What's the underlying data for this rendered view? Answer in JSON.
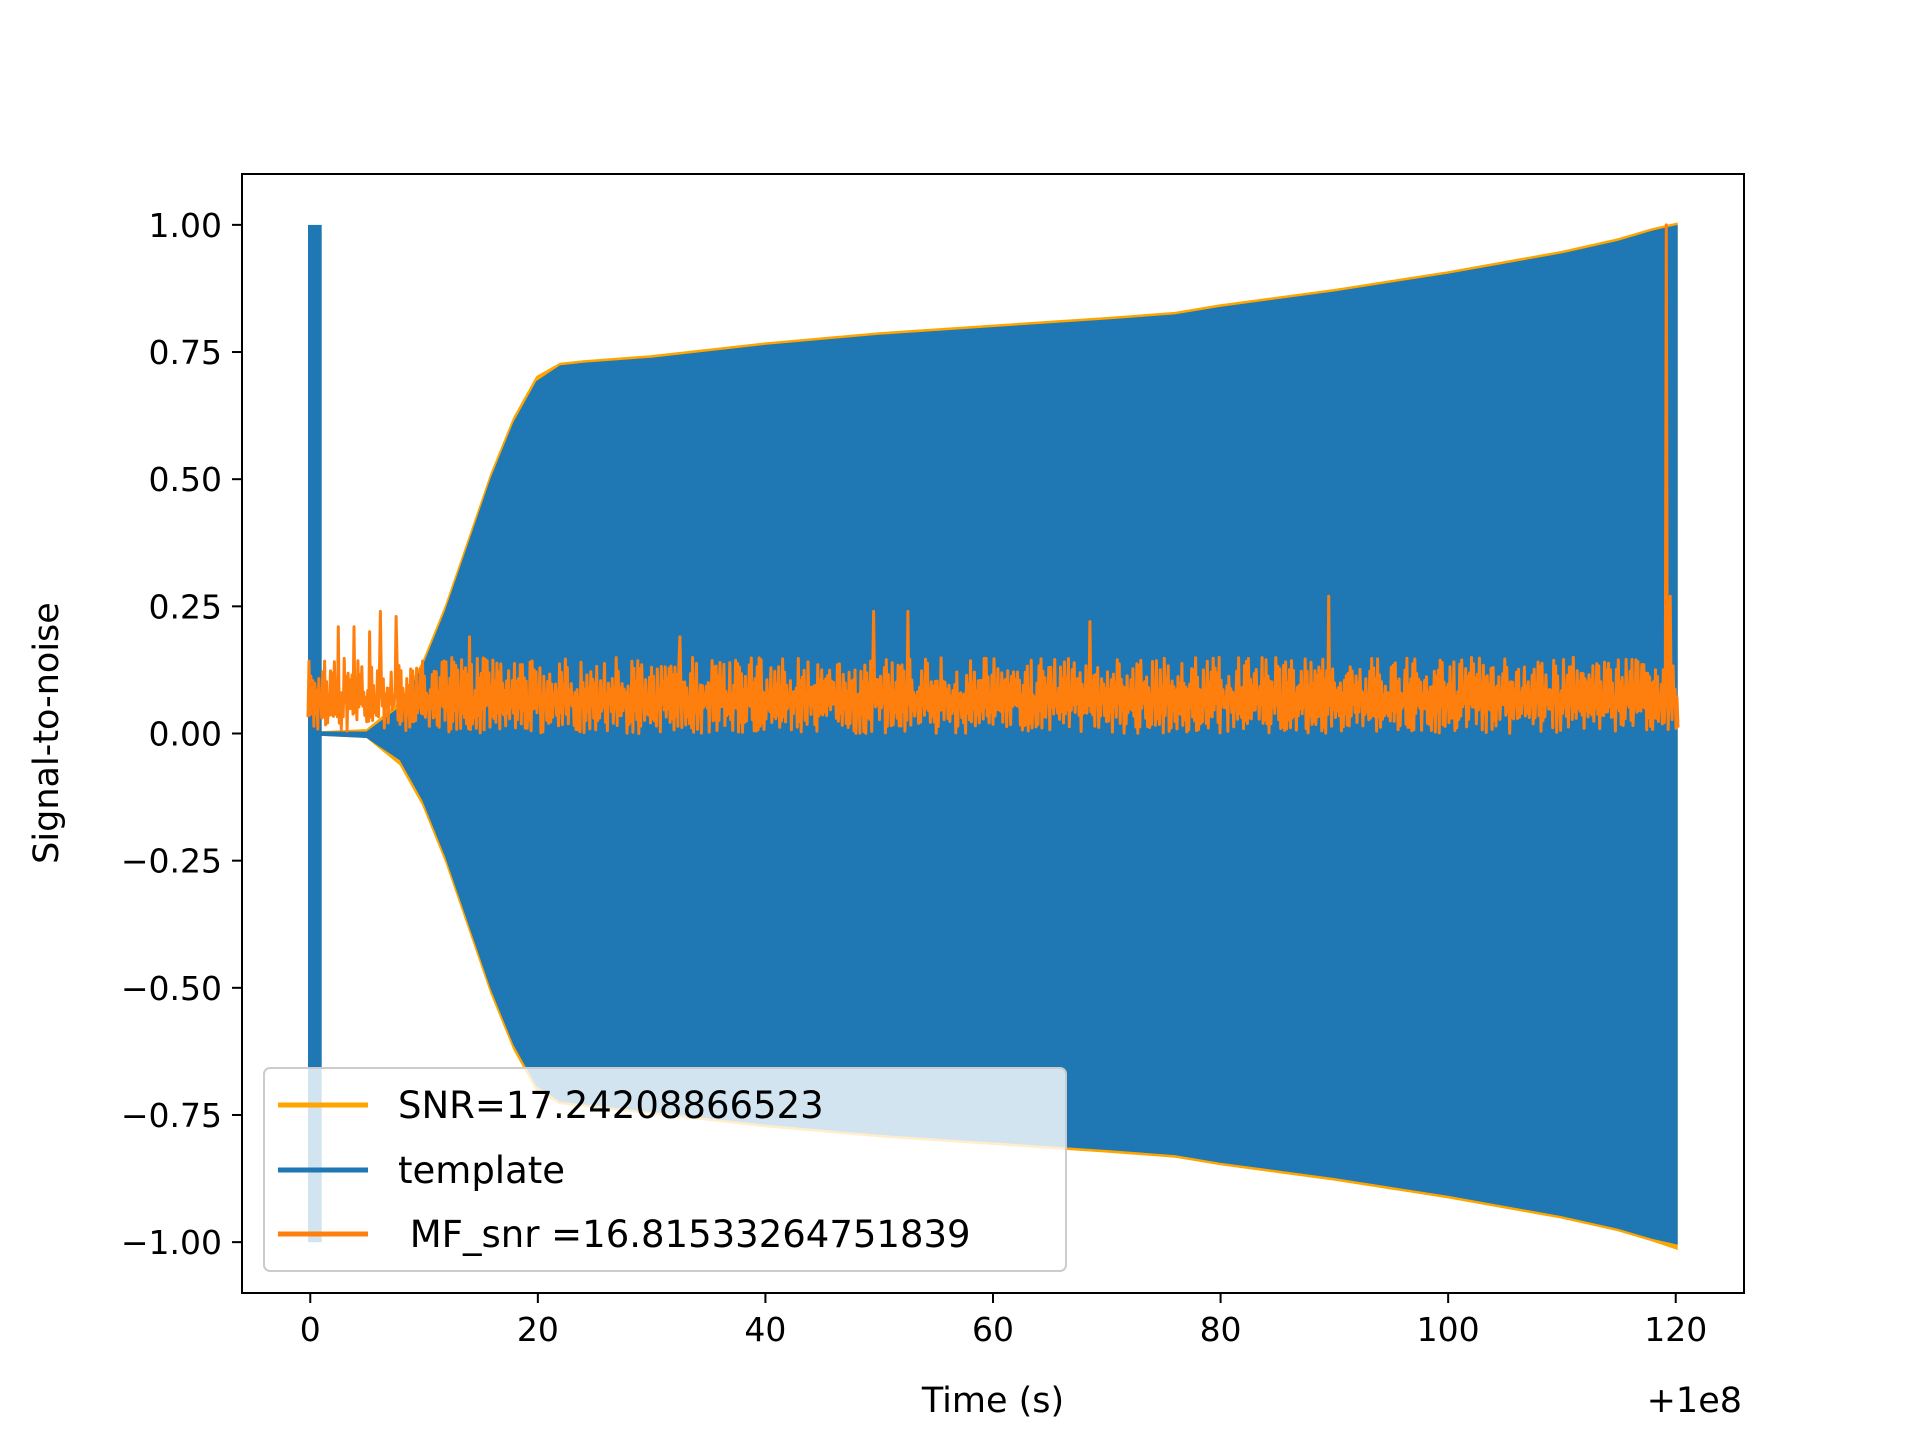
{
  "chart_data": {
    "type": "line",
    "title": "",
    "xlabel": "Time (s)",
    "ylabel": "Signal-to-noise",
    "x_offset_label": "+1e8",
    "xlim": [
      -6,
      126
    ],
    "ylim": [
      -1.1,
      1.1
    ],
    "xticks": [
      0,
      20,
      40,
      60,
      80,
      100,
      120
    ],
    "xtick_labels": [
      "0",
      "20",
      "40",
      "60",
      "80",
      "100",
      "120"
    ],
    "yticks": [
      1.0,
      0.75,
      0.5,
      0.25,
      0.0,
      -0.25,
      -0.5,
      -0.75,
      -1.0
    ],
    "ytick_labels": [
      "1.00",
      "0.75",
      "0.50",
      "0.25",
      "0.00",
      "−0.25",
      "−0.50",
      "−0.75",
      "−1.00"
    ],
    "grid": false,
    "legend_position": "lower-left",
    "series": [
      {
        "name": "SNR=17.24208866523",
        "color": "#ffa500",
        "kind": "envelope",
        "x": [
          0.3,
          5,
          8,
          10,
          12,
          14,
          16,
          18,
          20,
          22,
          24,
          30,
          40,
          50,
          60,
          70,
          76,
          80,
          90,
          100,
          110,
          115,
          118,
          120
        ],
        "upper": [
          0.0,
          0.005,
          0.06,
          0.14,
          0.25,
          0.38,
          0.51,
          0.62,
          0.7,
          0.725,
          0.73,
          0.74,
          0.765,
          0.785,
          0.8,
          0.815,
          0.825,
          0.84,
          0.87,
          0.905,
          0.945,
          0.97,
          0.99,
          1.0
        ],
        "lower": [
          0.0,
          -0.005,
          -0.06,
          -0.14,
          -0.25,
          -0.38,
          -0.51,
          -0.62,
          -0.7,
          -0.725,
          -0.73,
          -0.745,
          -0.77,
          -0.79,
          -0.805,
          -0.82,
          -0.83,
          -0.845,
          -0.875,
          -0.91,
          -0.95,
          -0.975,
          -0.995,
          -1.01
        ]
      },
      {
        "name": "template",
        "color": "#1f77b4",
        "kind": "envelope",
        "x": [
          0.3,
          5,
          8,
          10,
          12,
          14,
          16,
          18,
          20,
          22,
          24,
          30,
          40,
          50,
          60,
          70,
          76,
          80,
          90,
          100,
          110,
          115,
          118,
          120
        ],
        "upper": [
          0.0,
          0.0,
          0.05,
          0.13,
          0.24,
          0.37,
          0.5,
          0.61,
          0.69,
          0.72,
          0.725,
          0.735,
          0.76,
          0.78,
          0.795,
          0.81,
          0.82,
          0.835,
          0.865,
          0.9,
          0.94,
          0.965,
          0.985,
          0.995
        ],
        "lower": [
          0.0,
          -0.005,
          -0.05,
          -0.13,
          -0.24,
          -0.37,
          -0.5,
          -0.61,
          -0.69,
          -0.72,
          -0.725,
          -0.74,
          -0.765,
          -0.785,
          -0.8,
          -0.815,
          -0.825,
          -0.84,
          -0.87,
          -0.905,
          -0.945,
          -0.97,
          -0.99,
          -1.0
        ],
        "spike": {
          "x": [
            -0.2,
            1.0
          ],
          "y": [
            -1.0,
            1.0
          ]
        }
      },
      {
        "name": " MF_snr =16.81533264751839",
        "color": "#ff7f0e",
        "kind": "noise",
        "x_range": [
          -0.2,
          120.2
        ],
        "baseline_min": 0.0,
        "typical_max": 0.15,
        "peaks": [
          {
            "x": 2.5,
            "y": 0.21
          },
          {
            "x": 3.8,
            "y": 0.21
          },
          {
            "x": 5.2,
            "y": 0.2
          },
          {
            "x": 6.2,
            "y": 0.24
          },
          {
            "x": 7.5,
            "y": 0.23
          },
          {
            "x": 14.0,
            "y": 0.19
          },
          {
            "x": 32.5,
            "y": 0.19
          },
          {
            "x": 49.5,
            "y": 0.24
          },
          {
            "x": 52.5,
            "y": 0.24
          },
          {
            "x": 68.5,
            "y": 0.22
          },
          {
            "x": 89.5,
            "y": 0.27
          },
          {
            "x": 119.5,
            "y": 0.27
          },
          {
            "x": 119.2,
            "y": 1.0
          }
        ]
      }
    ]
  }
}
